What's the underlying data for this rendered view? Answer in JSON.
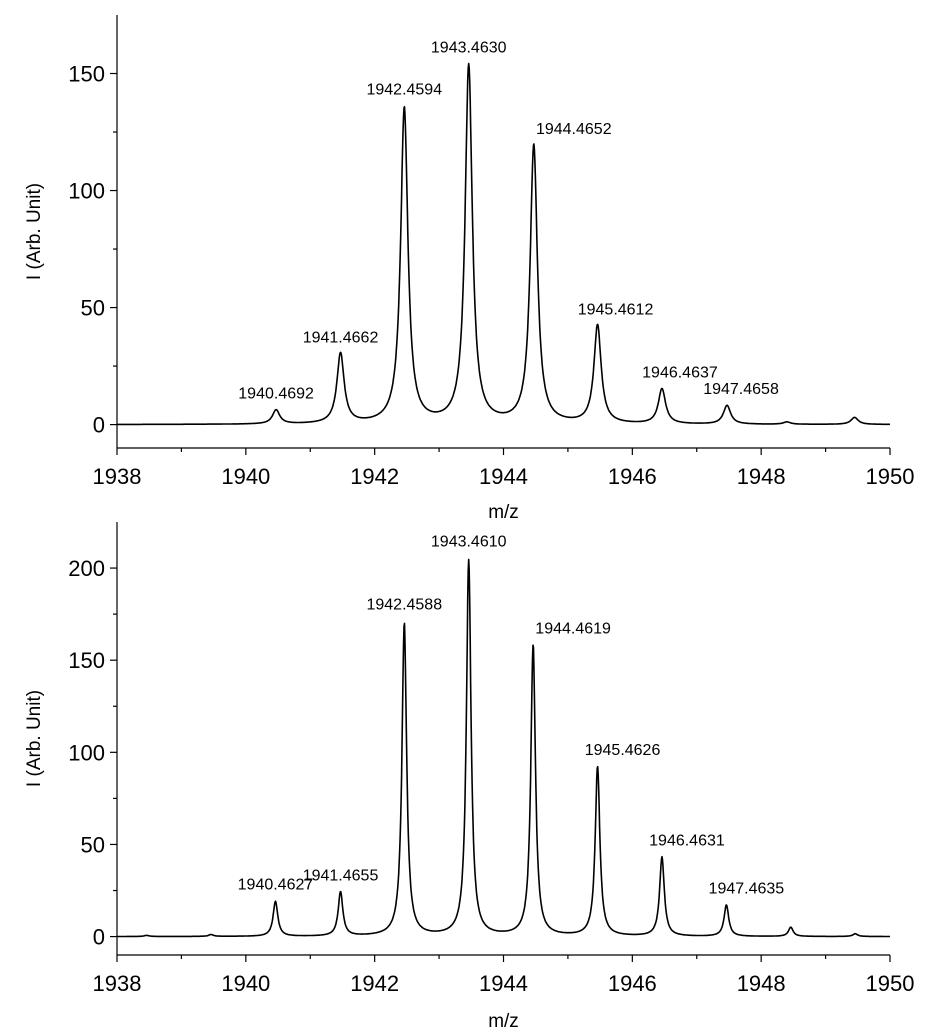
{
  "chart_data": [
    {
      "type": "line",
      "xlabel": "m/z",
      "ylabel": "I (Arb. Unit)",
      "xlim": [
        1938,
        1950
      ],
      "ylim": [
        -10,
        175
      ],
      "x_ticks": [
        1938,
        1940,
        1942,
        1944,
        1946,
        1948,
        1950
      ],
      "y_ticks": [
        0,
        50,
        100,
        150
      ],
      "peak_width": 0.085,
      "peaks": [
        {
          "label": "1940.4692",
          "x": 1940.47,
          "y": 6
        },
        {
          "label": "1941.4662",
          "x": 1941.47,
          "y": 30
        },
        {
          "label": "1942.4594",
          "x": 1942.46,
          "y": 135
        },
        {
          "label": "1943.4630",
          "x": 1943.46,
          "y": 153
        },
        {
          "label": "1944.4652",
          "x": 1944.47,
          "y": 119
        },
        {
          "label": "1945.4612",
          "x": 1945.46,
          "y": 42
        },
        {
          "label": "1946.4637",
          "x": 1946.46,
          "y": 15
        },
        {
          "label": "1947.4658",
          "x": 1947.47,
          "y": 8
        },
        {
          "label": "",
          "x": 1949.45,
          "y": 3
        },
        {
          "label": "",
          "x": 1948.4,
          "y": 1
        }
      ]
    },
    {
      "type": "line",
      "xlabel": "m/z",
      "ylabel": "I (Arb. Unit)",
      "xlim": [
        1938,
        1950
      ],
      "ylim": [
        -10,
        225
      ],
      "x_ticks": [
        1938,
        1940,
        1942,
        1944,
        1946,
        1948,
        1950
      ],
      "y_ticks": [
        0,
        50,
        100,
        150,
        200
      ],
      "peak_width": 0.055,
      "peaks": [
        {
          "label": "",
          "x": 1938.46,
          "y": 0.6
        },
        {
          "label": "",
          "x": 1939.46,
          "y": 1
        },
        {
          "label": "1940.4627",
          "x": 1940.46,
          "y": 19
        },
        {
          "label": "1941.4655",
          "x": 1941.47,
          "y": 24
        },
        {
          "label": "1942.4588",
          "x": 1942.46,
          "y": 170
        },
        {
          "label": "1943.4610",
          "x": 1943.46,
          "y": 204
        },
        {
          "label": "1944.4619",
          "x": 1944.46,
          "y": 158
        },
        {
          "label": "1945.4626",
          "x": 1945.46,
          "y": 92
        },
        {
          "label": "1946.4631",
          "x": 1946.46,
          "y": 43
        },
        {
          "label": "1947.4635",
          "x": 1947.46,
          "y": 17
        },
        {
          "label": "",
          "x": 1948.46,
          "y": 5
        },
        {
          "label": "",
          "x": 1949.46,
          "y": 1.5
        }
      ]
    }
  ]
}
